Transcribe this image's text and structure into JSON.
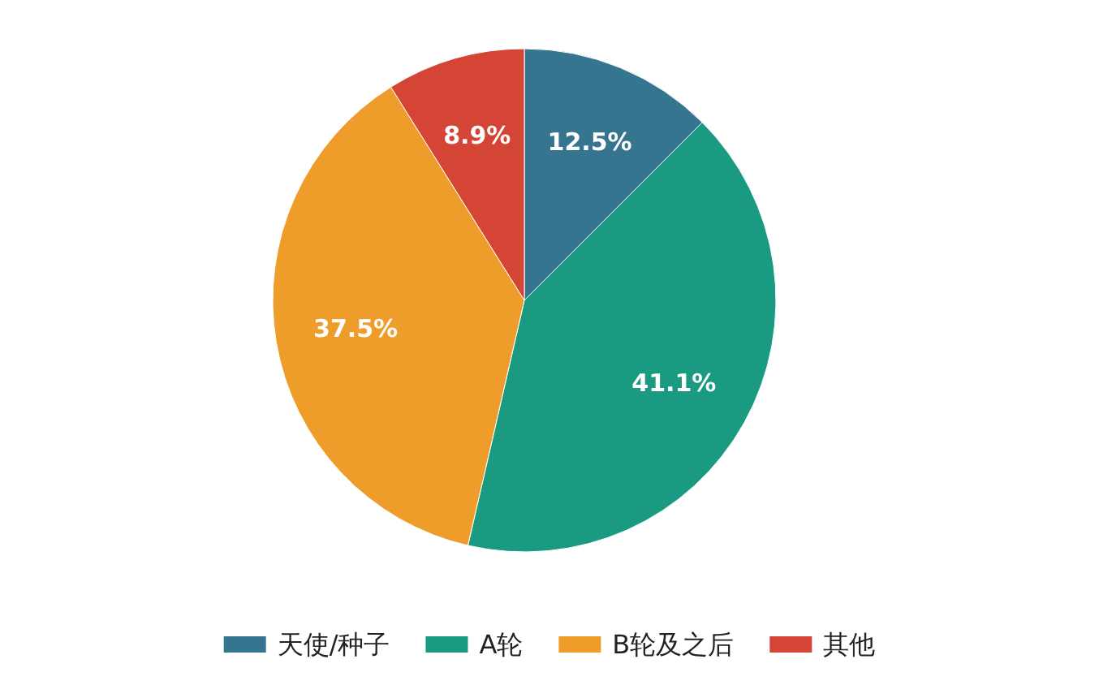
{
  "chart_data": {
    "type": "pie",
    "categories": [
      "天使/种子",
      "A轮",
      "B轮及之后",
      "其他"
    ],
    "values": [
      12.5,
      41.1,
      37.5,
      8.9
    ],
    "colors": [
      "#367590",
      "#1a9a80",
      "#ee9d2a",
      "#d44535"
    ],
    "value_labels": [
      "12.5%",
      "41.1%",
      "37.5%",
      "8.9%"
    ],
    "legend": "bottom"
  }
}
